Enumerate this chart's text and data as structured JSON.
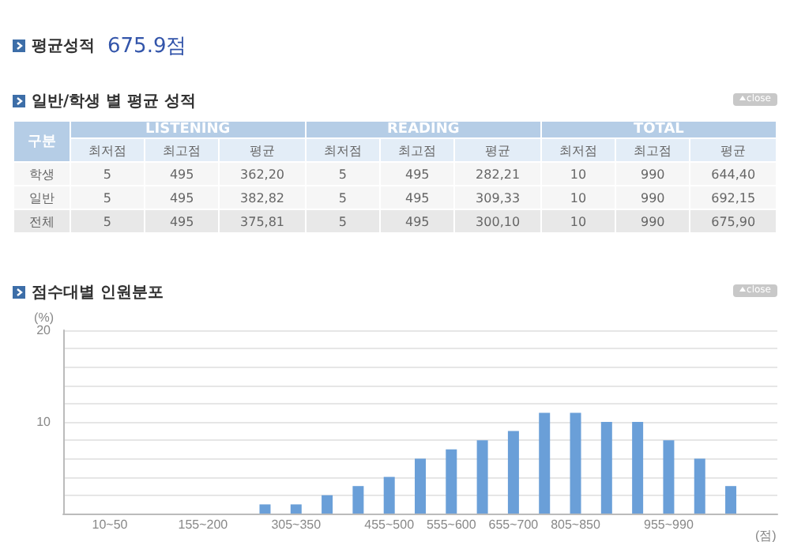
{
  "chart_data": [
    {
      "type": "other",
      "title": "평균성적",
      "annotations": [
        "675.9점"
      ]
    },
    {
      "type": "other",
      "title": "일반/학생 별 평균 성적",
      "annotations": [
        "close",
        "구분",
        "LISTENING",
        "READING",
        "TOTAL",
        "최저점",
        "최고점",
        "평균",
        "최저점",
        "최고점",
        "평균",
        "최저점",
        "최고점",
        "평균",
        "학생",
        "5",
        "495",
        "362,20",
        "5",
        "495",
        "282,21",
        "10",
        "990",
        "644,40",
        "일반",
        "5",
        "495",
        "382,82",
        "5",
        "495",
        "309,33",
        "10",
        "990",
        "692,15",
        "전체",
        "5",
        "495",
        "375,81",
        "5",
        "495",
        "300,10",
        "10",
        "990",
        "675,90"
      ]
    },
    {
      "type": "bar",
      "title": "점수대별 인원분포",
      "annotations": [
        "close"
      ],
      "ylabel": "(%)",
      "xlabel": "(점)",
      "categories": [
        null,
        "10~50",
        null,
        null,
        "155~200",
        null,
        null,
        "305~350",
        null,
        null,
        "455~500",
        null,
        "555~600",
        null,
        "655~700",
        null,
        "805~850",
        null,
        null,
        "955~990",
        null,
        null,
        null
      ],
      "values": [
        null,
        null,
        null,
        null,
        null,
        null,
        1,
        1,
        2,
        3,
        4,
        6,
        7,
        8,
        9,
        11,
        11,
        10,
        10,
        8,
        6,
        3,
        null
      ],
      "color": "#6a9fd8",
      "ylim": [
        0,
        20
      ],
      "yticks": [
        {
          "value": 0,
          "label": null
        },
        {
          "value": 2,
          "label": null
        },
        {
          "value": 4,
          "label": null
        },
        {
          "value": 6,
          "label": null
        },
        {
          "value": 8,
          "label": null
        },
        10,
        {
          "value": 12,
          "label": null
        },
        {
          "value": 14,
          "label": null
        },
        {
          "value": 16,
          "label": null
        },
        {
          "value": 18,
          "label": null
        },
        20
      ],
      "grid": "y"
    }
  ]
}
